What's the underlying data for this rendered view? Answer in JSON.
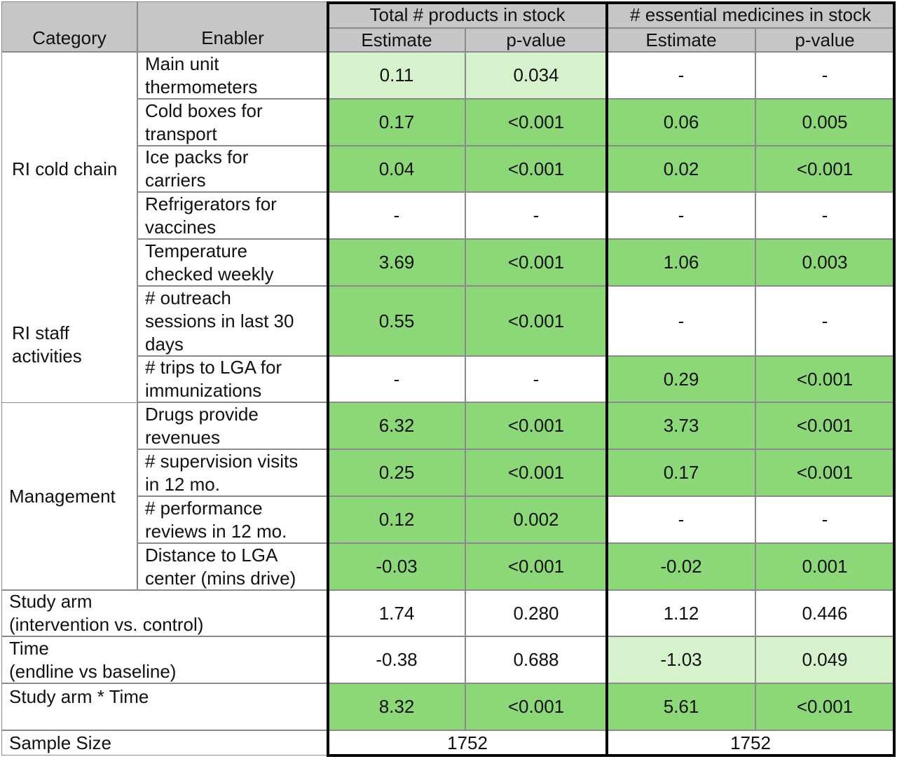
{
  "header": {
    "category": "Category",
    "enabler": "Enabler",
    "group1": "Total # products in stock",
    "group2": "# essential medicines in stock",
    "estimate": "Estimate",
    "pvalue": "p-value"
  },
  "categories": {
    "cold_chain": "RI cold chain",
    "staff": "RI staff\nactivities",
    "management": "Management"
  },
  "rows": [
    {
      "enabler": "Main unit\nthermometers",
      "e1": "0.11",
      "p1": "0.034",
      "e2": "-",
      "p2": "-"
    },
    {
      "enabler": "Cold boxes for\ntransport",
      "e1": "0.17",
      "p1": "<0.001",
      "e2": "0.06",
      "p2": "0.005"
    },
    {
      "enabler": "Ice packs for\ncarriers",
      "e1": "0.04",
      "p1": "<0.001",
      "e2": "0.02",
      "p2": "<0.001"
    },
    {
      "enabler": "Refrigerators for\nvaccines",
      "e1": "-",
      "p1": "-",
      "e2": "-",
      "p2": "-"
    },
    {
      "enabler": "Temperature\nchecked weekly",
      "e1": "3.69",
      "p1": "<0.001",
      "e2": "1.06",
      "p2": "0.003"
    },
    {
      "enabler": "# outreach\nsessions in last 30\ndays",
      "e1": "0.55",
      "p1": "<0.001",
      "e2": "-",
      "p2": "-"
    },
    {
      "enabler": "# trips to LGA for\nimmunizations",
      "e1": "-",
      "p1": "-",
      "e2": "0.29",
      "p2": "<0.001"
    },
    {
      "enabler": "Drugs provide\nrevenues",
      "e1": "6.32",
      "p1": "<0.001",
      "e2": "3.73",
      "p2": "<0.001"
    },
    {
      "enabler": "# supervision visits\nin 12 mo.",
      "e1": "0.25",
      "p1": "<0.001",
      "e2": "0.17",
      "p2": "<0.001"
    },
    {
      "enabler": "# performance\nreviews in 12 mo.",
      "e1": "0.12",
      "p1": "0.002",
      "e2": "-",
      "p2": "-"
    },
    {
      "enabler": "Distance to LGA\ncenter (mins drive)",
      "e1": "-0.03",
      "p1": "<0.001",
      "e2": "-0.02",
      "p2": "0.001"
    }
  ],
  "bottom_rows": [
    {
      "label": "Study arm\n(intervention vs. control)",
      "e1": "1.74",
      "p1": "0.280",
      "e2": "1.12",
      "p2": "0.446"
    },
    {
      "label": "Time\n(endline vs baseline)",
      "e1": "-0.38",
      "p1": "0.688",
      "e2": "-1.03",
      "p2": "0.049"
    },
    {
      "label": "Study arm * Time",
      "e1": "8.32",
      "p1": "<0.001",
      "e2": "5.61",
      "p2": "<0.001"
    }
  ],
  "sample": {
    "label": "Sample Size",
    "n1": "1752",
    "n2": "1752"
  },
  "colors": {
    "header": "#c6c6c6",
    "significant": "#8cd878",
    "marginal": "#d6f2cd"
  }
}
